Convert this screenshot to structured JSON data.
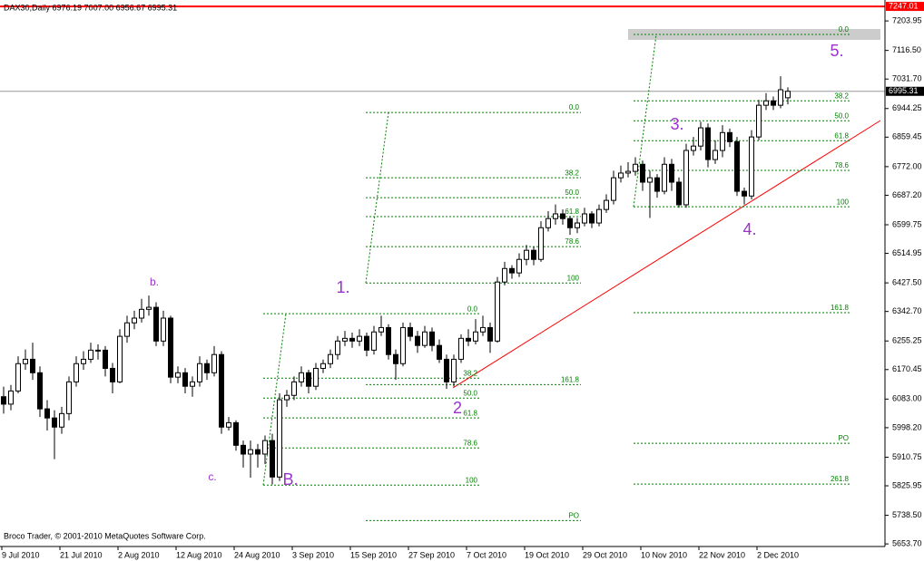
{
  "chart_data": {
    "type": "candlestick",
    "title": "DAX30,Daily 6976.19 7007.00 6956.67 6995.31",
    "footer": "Broco Trader, © 2001-2010 MetaQuotes Software Corp.",
    "categories": [
      "9 Jul 2010",
      null,
      null,
      null,
      null,
      null,
      null,
      null,
      "21 Jul 2010",
      null,
      null,
      null,
      null,
      null,
      null,
      null,
      "2 Aug 2010",
      null,
      null,
      null,
      null,
      null,
      null,
      null,
      "12 Aug 2010",
      null,
      null,
      null,
      null,
      null,
      null,
      null,
      "24 Aug 2010",
      null,
      null,
      null,
      null,
      null,
      null,
      null,
      "3 Sep 2010",
      null,
      null,
      null,
      null,
      null,
      null,
      null,
      "15 Sep 2010",
      null,
      null,
      null,
      null,
      null,
      null,
      null,
      "27 Sep 2010",
      null,
      null,
      null,
      null,
      null,
      null,
      null,
      "7 Oct 2010",
      null,
      null,
      null,
      null,
      null,
      null,
      null,
      "19 Oct 2010",
      null,
      null,
      null,
      null,
      null,
      null,
      null,
      "29 Oct 2010",
      null,
      null,
      null,
      null,
      null,
      null,
      null,
      "10 Nov 2010",
      null,
      null,
      null,
      null,
      null,
      null,
      null,
      "22 Nov 2010",
      null,
      null,
      null,
      null,
      null,
      null,
      null,
      "2 Dec 2010",
      null,
      null,
      null,
      null
    ],
    "candles": [
      [
        6090,
        6120,
        6040,
        6068
      ],
      [
        6068,
        6125,
        6050,
        6107
      ],
      [
        6107,
        6210,
        6100,
        6188
      ],
      [
        6188,
        6230,
        6170,
        6201
      ],
      [
        6201,
        6250,
        6140,
        6161
      ],
      [
        6161,
        6180,
        6030,
        6054
      ],
      [
        6054,
        6080,
        5990,
        6027
      ],
      [
        6027,
        6050,
        5905,
        6000
      ],
      [
        6000,
        6060,
        5980,
        6040
      ],
      [
        6040,
        6150,
        6020,
        6134
      ],
      [
        6134,
        6210,
        6120,
        6188
      ],
      [
        6188,
        6225,
        6170,
        6201
      ],
      [
        6201,
        6250,
        6190,
        6228
      ],
      [
        6228,
        6245,
        6200,
        6228
      ],
      [
        6228,
        6240,
        6150,
        6174
      ],
      [
        6174,
        6190,
        6100,
        6134
      ],
      [
        6134,
        6290,
        6130,
        6269
      ],
      [
        6269,
        6330,
        6250,
        6309
      ],
      [
        6309,
        6345,
        6290,
        6323
      ],
      [
        6323,
        6380,
        6310,
        6349
      ],
      [
        6349,
        6390,
        6330,
        6355
      ],
      [
        6355,
        6370,
        6240,
        6255
      ],
      [
        6255,
        6345,
        6240,
        6323
      ],
      [
        6323,
        6330,
        6130,
        6148
      ],
      [
        6148,
        6180,
        6130,
        6161
      ],
      [
        6161,
        6175,
        6100,
        6121
      ],
      [
        6121,
        6150,
        6090,
        6134
      ],
      [
        6134,
        6210,
        6120,
        6188
      ],
      [
        6188,
        6200,
        6140,
        6161
      ],
      [
        6161,
        6240,
        6150,
        6215
      ],
      [
        6215,
        6225,
        5980,
        6000
      ],
      [
        6000,
        6030,
        5990,
        6013
      ],
      [
        6013,
        6020,
        5930,
        5946
      ],
      [
        5946,
        5960,
        5880,
        5920
      ],
      [
        5920,
        5960,
        5850,
        5933
      ],
      [
        5933,
        5950,
        5880,
        5920
      ],
      [
        5920,
        5975,
        5890,
        5960
      ],
      [
        5960,
        5980,
        5830,
        5852
      ],
      [
        5852,
        6100,
        5840,
        6081
      ],
      [
        6081,
        6110,
        6060,
        6094
      ],
      [
        6094,
        6150,
        6080,
        6134
      ],
      [
        6134,
        6180,
        6120,
        6161
      ],
      [
        6161,
        6170,
        6100,
        6121
      ],
      [
        6121,
        6190,
        6110,
        6174
      ],
      [
        6174,
        6200,
        6160,
        6188
      ],
      [
        6188,
        6230,
        6175,
        6215
      ],
      [
        6215,
        6270,
        6200,
        6255
      ],
      [
        6255,
        6285,
        6240,
        6263
      ],
      [
        6263,
        6280,
        6235,
        6255
      ],
      [
        6255,
        6290,
        6240,
        6269
      ],
      [
        6269,
        6280,
        6210,
        6228
      ],
      [
        6228,
        6300,
        6215,
        6282
      ],
      [
        6282,
        6330,
        6270,
        6295
      ],
      [
        6295,
        6305,
        6200,
        6215
      ],
      [
        6215,
        6230,
        6140,
        6188
      ],
      [
        6188,
        6310,
        6180,
        6295
      ],
      [
        6295,
        6310,
        6255,
        6269
      ],
      [
        6269,
        6285,
        6220,
        6242
      ],
      [
        6242,
        6300,
        6235,
        6282
      ],
      [
        6282,
        6295,
        6225,
        6242
      ],
      [
        6242,
        6260,
        6190,
        6201
      ],
      [
        6201,
        6215,
        6113,
        6134
      ],
      [
        6134,
        6215,
        6120,
        6201
      ],
      [
        6201,
        6275,
        6190,
        6263
      ],
      [
        6263,
        6290,
        6240,
        6255
      ],
      [
        6255,
        6320,
        6245,
        6282
      ],
      [
        6282,
        6330,
        6270,
        6295
      ],
      [
        6295,
        6310,
        6220,
        6255
      ],
      [
        6255,
        6445,
        6250,
        6430
      ],
      [
        6430,
        6490,
        6420,
        6470
      ],
      [
        6470,
        6480,
        6440,
        6457
      ],
      [
        6457,
        6515,
        6445,
        6497
      ],
      [
        6497,
        6540,
        6480,
        6524
      ],
      [
        6524,
        6535,
        6480,
        6497
      ],
      [
        6497,
        6610,
        6490,
        6591
      ],
      [
        6591,
        6640,
        6580,
        6618
      ],
      [
        6618,
        6660,
        6600,
        6632
      ],
      [
        6632,
        6645,
        6600,
        6618
      ],
      [
        6618,
        6625,
        6570,
        6591
      ],
      [
        6591,
        6620,
        6575,
        6605
      ],
      [
        6605,
        6650,
        6595,
        6632
      ],
      [
        6632,
        6640,
        6590,
        6605
      ],
      [
        6605,
        6660,
        6595,
        6645
      ],
      [
        6645,
        6690,
        6635,
        6672
      ],
      [
        6672,
        6760,
        6660,
        6739
      ],
      [
        6739,
        6775,
        6725,
        6753
      ],
      [
        6753,
        6785,
        6740,
        6758
      ],
      [
        6758,
        6800,
        6745,
        6779
      ],
      [
        6779,
        6790,
        6700,
        6726
      ],
      [
        6726,
        6760,
        6620,
        6739
      ],
      [
        6739,
        6750,
        6680,
        6699
      ],
      [
        6699,
        6800,
        6690,
        6779
      ],
      [
        6779,
        6795,
        6700,
        6726
      ],
      [
        6726,
        6740,
        6650,
        6659
      ],
      [
        6659,
        6840,
        6650,
        6820
      ],
      [
        6820,
        6860,
        6805,
        6833
      ],
      [
        6833,
        6905,
        6820,
        6887
      ],
      [
        6887,
        6900,
        6770,
        6793
      ],
      [
        6793,
        6850,
        6780,
        6820
      ],
      [
        6820,
        6895,
        6800,
        6873
      ],
      [
        6873,
        6885,
        6830,
        6846
      ],
      [
        6846,
        6860,
        6685,
        6699
      ],
      [
        6699,
        6710,
        6660,
        6685
      ],
      [
        6685,
        6880,
        6675,
        6860
      ],
      [
        6860,
        6970,
        6850,
        6954
      ],
      [
        6954,
        6990,
        6940,
        6967
      ],
      [
        6967,
        6980,
        6940,
        6954
      ],
      [
        6954,
        7040,
        6945,
        7000
      ],
      [
        6976.19,
        7007.0,
        6956.67,
        6995.31
      ]
    ],
    "ylim": [
      5646,
      7266
    ],
    "yticks": [
      {
        "value": 7203.95,
        "label": "7203.95"
      },
      {
        "value": 7116.5,
        "label": "7116.50"
      },
      {
        "value": 7031.7,
        "label": "7031.70"
      },
      {
        "value": 6944.25,
        "label": "6944.25"
      },
      {
        "value": 6859.45,
        "label": "6859.45"
      },
      {
        "value": 6772,
        "label": "6772.00"
      },
      {
        "value": 6687.2,
        "label": "6687.20"
      },
      {
        "value": 6599.75,
        "label": "6599.75"
      },
      {
        "value": 6514.95,
        "label": "6514.95"
      },
      {
        "value": 6427.5,
        "label": "6427.50"
      },
      {
        "value": 6342.7,
        "label": "6342.70"
      },
      {
        "value": 6255.25,
        "label": "6255.25"
      },
      {
        "value": 6170.45,
        "label": "6170.45"
      },
      {
        "value": 6083,
        "label": "6083.00"
      },
      {
        "value": 5998.2,
        "label": "5998.20"
      },
      {
        "value": 5910.75,
        "label": "5910.75"
      },
      {
        "value": 5825.95,
        "label": "5825.95"
      },
      {
        "value": 5738.5,
        "label": "5738.50"
      },
      {
        "value": 5653.7,
        "label": "5653.70"
      }
    ],
    "price_lines": [
      {
        "value": 7247.01,
        "label": "7247.01",
        "color": "#ff0000"
      },
      {
        "value": 6995.31,
        "label": "6995.31",
        "color": "#999999"
      }
    ],
    "fibs": [
      {
        "color": "#008000",
        "levels": [
          {
            "label": "0.0",
            "value": 6932.6
          },
          {
            "label": "38.2",
            "value": 6739
          },
          {
            "label": "50.0",
            "value": 6680
          },
          {
            "label": "61.8",
            "value": 6624
          },
          {
            "label": "78.6",
            "value": 6535
          },
          {
            "label": "100",
            "value": 6427
          },
          {
            "label": "161.8",
            "value": 6126
          },
          {
            "label": "PO",
            "value": 5723
          }
        ]
      },
      {
        "color": "#008000",
        "levels": [
          {
            "label": "0.0",
            "value": 6336
          },
          {
            "label": "38.2",
            "value": 6145
          },
          {
            "label": "50.0",
            "value": 6086
          },
          {
            "label": "61.8",
            "value": 6027
          },
          {
            "label": "78.6",
            "value": 5938
          },
          {
            "label": "100",
            "value": 5828
          }
        ]
      },
      {
        "color": "#008000",
        "levels": [
          {
            "label": "0.0",
            "value": 7164
          },
          {
            "label": "38.2",
            "value": 6967
          },
          {
            "label": "50.0",
            "value": 6908
          },
          {
            "label": "61.8",
            "value": 6849
          },
          {
            "label": "78.6",
            "value": 6761
          },
          {
            "label": "100",
            "value": 6653
          },
          {
            "label": "161.8",
            "value": 6339
          },
          {
            "label": "PO",
            "value": 5952
          },
          {
            "label": "261.8",
            "value": 5831
          }
        ]
      }
    ],
    "annotations": [
      {
        "text": "b."
      },
      {
        "text": "c."
      },
      {
        "text": "B."
      },
      {
        "text": "1."
      },
      {
        "text": "2"
      },
      {
        "text": "3."
      },
      {
        "text": "4."
      },
      {
        "text": "5."
      }
    ],
    "annotation_color": "#9933cc"
  }
}
